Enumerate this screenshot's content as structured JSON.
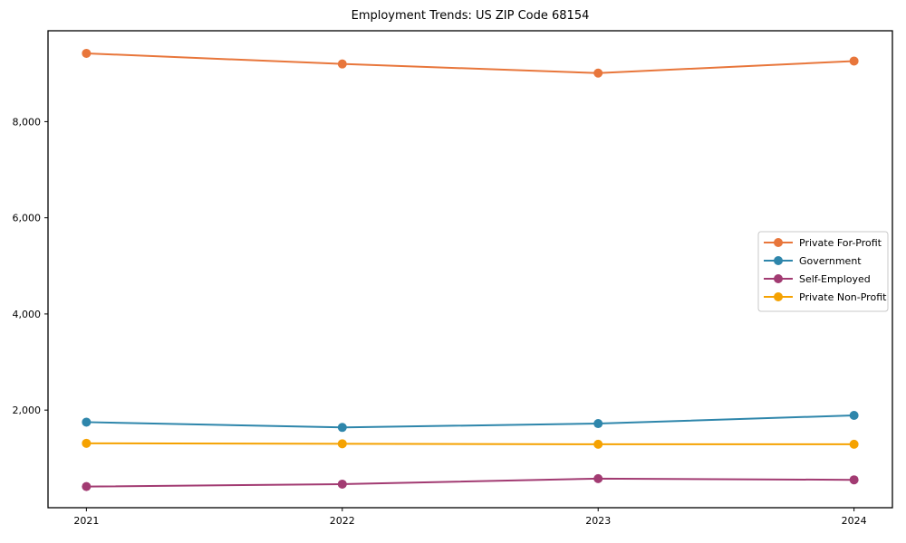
{
  "chart_data": {
    "type": "line",
    "title": "Employment Trends: US ZIP Code 68154",
    "x": [
      2021,
      2022,
      2023,
      2024
    ],
    "x_tick_labels": [
      "2021",
      "2022",
      "2023",
      "2024"
    ],
    "series": [
      {
        "name": "Private For-Profit",
        "color": "#E8763B",
        "values": [
          9420,
          9200,
          9010,
          9260
        ]
      },
      {
        "name": "Government",
        "color": "#2E86AB",
        "values": [
          1750,
          1640,
          1720,
          1890
        ]
      },
      {
        "name": "Self-Employed",
        "color": "#A23B72",
        "values": [
          410,
          460,
          575,
          550
        ]
      },
      {
        "name": "Private Non-Profit",
        "color": "#F5A201",
        "values": [
          1310,
          1300,
          1290,
          1290
        ]
      }
    ],
    "y_ticks": [
      {
        "value": 2000,
        "label": "2,000"
      },
      {
        "value": 4000,
        "label": "4,000"
      },
      {
        "value": 6000,
        "label": "6,000"
      },
      {
        "value": 8000,
        "label": "8,000"
      }
    ],
    "ylim": [
      -30,
      9890
    ],
    "grid": false,
    "legend_position": "center-right",
    "marker": "circle",
    "axis_color": "#000000",
    "legend_border_color": "#c8c8c8",
    "background": "#ffffff"
  }
}
